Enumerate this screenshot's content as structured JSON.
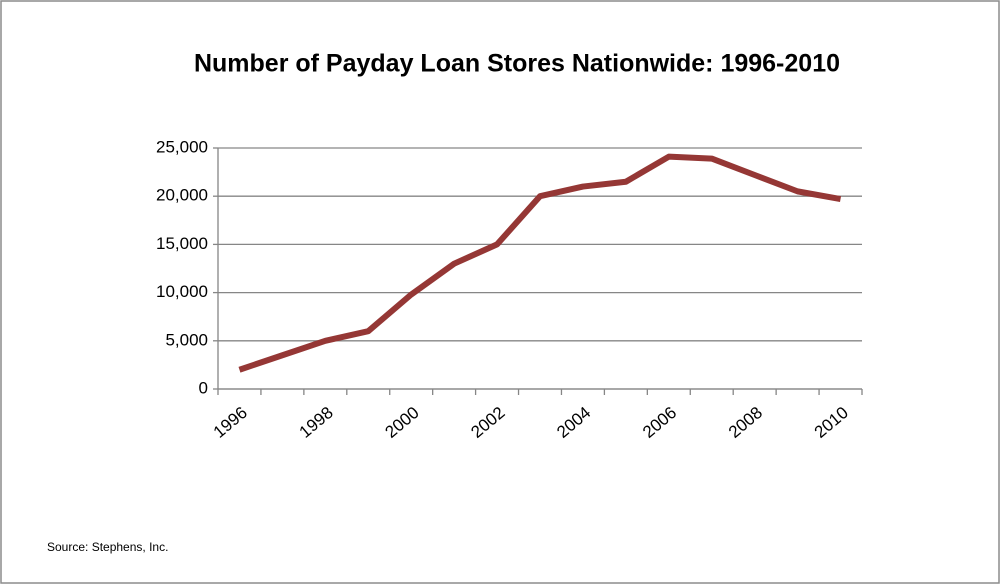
{
  "chart_data": {
    "type": "line",
    "title": "Number of Payday Loan Stores Nationwide: 1996-2010",
    "source": "Source: Stephens, Inc.",
    "categories": [
      "1996",
      null,
      "1998",
      null,
      "2000",
      null,
      "2002",
      null,
      "2004",
      null,
      "2006",
      null,
      "2008",
      null,
      "2010"
    ],
    "series": [
      {
        "name": "Payday Loan Stores",
        "color": "#953735",
        "values": [
          2000,
          3500,
          5000,
          6000,
          9800,
          13000,
          15000,
          20000,
          21000,
          21500,
          24100,
          23900,
          22200,
          20500,
          19700
        ]
      }
    ],
    "ylim": [
      0,
      25000
    ],
    "yticks": [
      0,
      {
        "value": 5000,
        "label": "5,000"
      },
      {
        "value": 10000,
        "label": "10,000"
      },
      {
        "value": 15000,
        "label": "15,000"
      },
      {
        "value": 20000,
        "label": "20,000"
      },
      {
        "value": 25000,
        "label": "25,000"
      }
    ],
    "grid": true
  }
}
